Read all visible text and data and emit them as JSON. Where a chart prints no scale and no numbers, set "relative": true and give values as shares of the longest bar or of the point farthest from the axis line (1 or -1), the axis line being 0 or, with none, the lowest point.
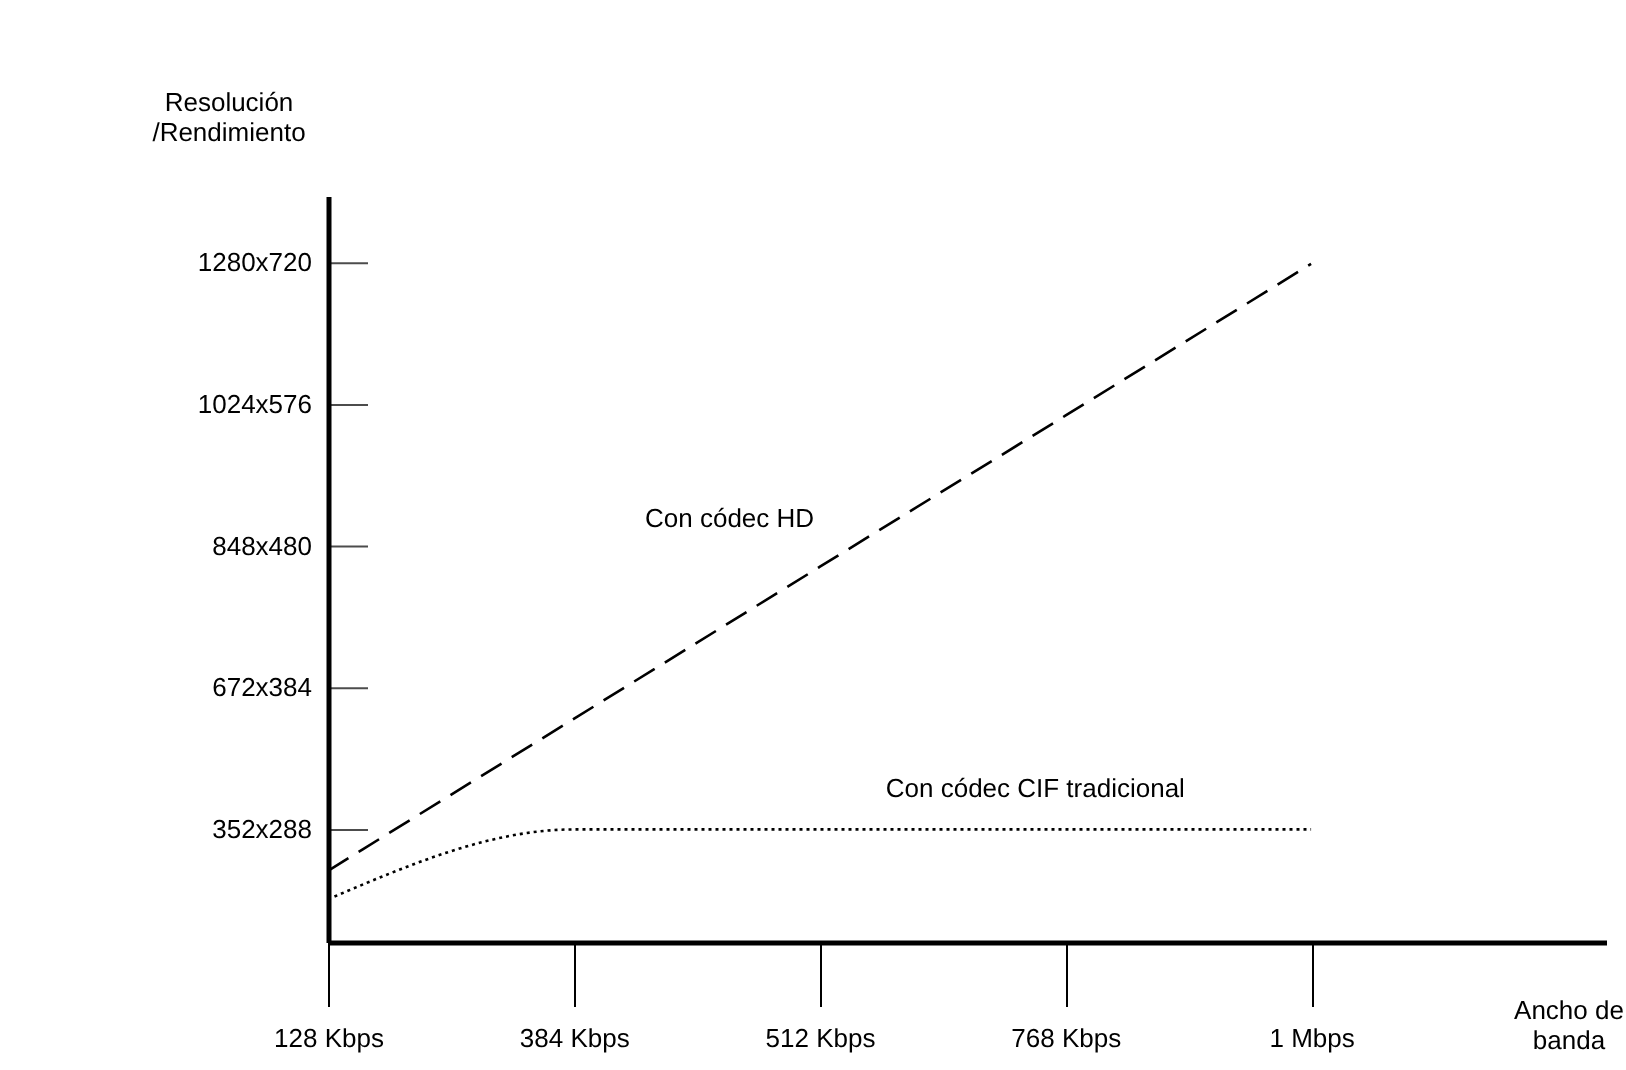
{
  "chart_data": {
    "type": "line",
    "relative": true,
    "xlabel": "Ancho de banda",
    "ylabel": "Resolución /Rendimiento",
    "categories": [
      "128 Kbps",
      "384 Kbps",
      "512 Kbps",
      "768 Kbps",
      "1 Mbps"
    ],
    "annotations": [
      "352x288",
      "672x384",
      "848x480",
      "1024x576",
      "1280x720"
    ],
    "series": [
      {
        "name": "Con códec HD",
        "color": "#000000",
        "line_style": "dashed",
        "values": [
          0.105,
          0.329,
          0.553,
          0.776,
          1
        ]
      },
      {
        "name": "Con códec CIF tradicional",
        "color": "#000000",
        "line_style": "dotted",
        "values": [
          0.063,
          0.166,
          0.166,
          0.166,
          0.166
        ]
      }
    ]
  }
}
